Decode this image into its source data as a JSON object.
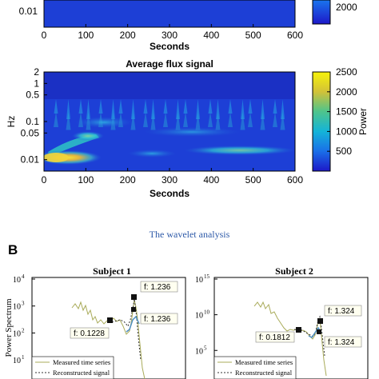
{
  "top_panel": {
    "xticks": [
      "0",
      "100",
      "200",
      "300",
      "400",
      "500",
      "600"
    ],
    "yticks": [
      "0.01"
    ],
    "xlabel": "Seconds",
    "colorbar_ticks": [
      "2000"
    ]
  },
  "heatmap": {
    "title": "Average flux signal",
    "ylabel": "Hz",
    "xlabel": "Seconds",
    "xticks": [
      "0",
      "100",
      "200",
      "300",
      "400",
      "500",
      "600"
    ],
    "yticks": [
      "2",
      "1",
      "0.5",
      "0.1",
      "0.05",
      "0.01"
    ],
    "colorbar_label": "Power",
    "colorbar_ticks": [
      "2500",
      "2000",
      "1500",
      "1000",
      "500"
    ]
  },
  "caption": "The wavelet analysis",
  "panel_b": {
    "letter": "B",
    "ylabel": "Power Spectrum",
    "legend": [
      "Measured time series",
      "Reconstructed signal"
    ],
    "subject1": {
      "title": "Subject 1",
      "yticks": [
        "10",
        "10",
        "10",
        "10"
      ],
      "yexps": [
        "4",
        "3",
        "2",
        "1"
      ],
      "labels": [
        "f: 1.236",
        "f: 1.236",
        "f: 0.1228"
      ]
    },
    "subject2": {
      "title": "Subject 2",
      "yticks": [
        "10",
        "10",
        "10"
      ],
      "yexps": [
        "15",
        "10",
        "5"
      ],
      "labels": [
        "f: 1.324",
        "f: 1.324",
        "f: 0.1812"
      ]
    }
  },
  "chart_data": [
    {
      "type": "heatmap",
      "title": "Average flux signal",
      "xlabel": "Seconds",
      "ylabel": "Hz",
      "xlim": [
        0,
        600
      ],
      "yscale": "log",
      "ylim": [
        0.005,
        2
      ],
      "colorbar": {
        "label": "Power",
        "range": [
          0,
          2500
        ],
        "colormap": "parula"
      }
    },
    {
      "type": "line",
      "title": "Subject 1",
      "ylabel": "Power Spectrum",
      "yscale": "log",
      "series": [
        {
          "name": "Measured time series",
          "color": "#a9ab5a"
        },
        {
          "name": "Reconstructed signal",
          "color": "#333333"
        }
      ],
      "annotations": [
        {
          "x": 1.236,
          "label": "f: 1.236"
        },
        {
          "x": 1.236,
          "label": "f: 1.236"
        },
        {
          "x": 0.1228,
          "label": "f: 0.1228"
        }
      ]
    },
    {
      "type": "line",
      "title": "Subject 2",
      "ylabel": "Power Spectrum",
      "yscale": "log",
      "series": [
        {
          "name": "Measured time series",
          "color": "#a9ab5a"
        },
        {
          "name": "Reconstructed signal",
          "color": "#333333"
        }
      ],
      "annotations": [
        {
          "x": 1.324,
          "label": "f: 1.324"
        },
        {
          "x": 1.324,
          "label": "f: 1.324"
        },
        {
          "x": 0.1812,
          "label": "f: 0.1812"
        }
      ]
    }
  ]
}
